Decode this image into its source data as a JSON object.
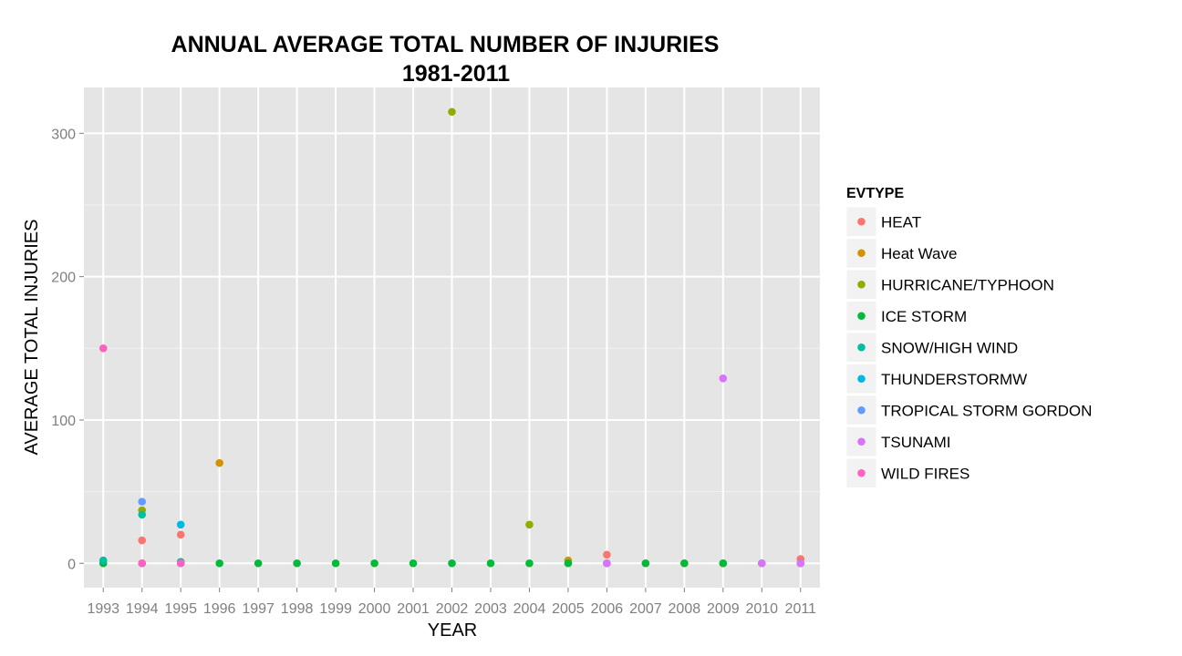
{
  "chart_data": {
    "type": "scatter",
    "title": "ANNUAL AVERAGE TOTAL NUMBER OF INJURIES",
    "subtitle": "1981-2011",
    "xlabel": "YEAR",
    "ylabel": "AVERAGE TOTAL INJURIES",
    "categories": [
      "1993",
      "1994",
      "1995",
      "1996",
      "1997",
      "1998",
      "1999",
      "2000",
      "2001",
      "2002",
      "2003",
      "2004",
      "2005",
      "2006",
      "2007",
      "2008",
      "2009",
      "2010",
      "2011"
    ],
    "ylim": [
      -17,
      332
    ],
    "yticks": [
      0,
      100,
      200,
      300
    ],
    "grid": true,
    "legend_title": "EVTYPE",
    "legend_position": "right",
    "series": [
      {
        "name": "HEAT",
        "color": "#F8766D",
        "points": [
          [
            "1994",
            16
          ],
          [
            "1995",
            20
          ],
          [
            "2006",
            6
          ],
          [
            "2007",
            0
          ],
          [
            "2008",
            0
          ],
          [
            "2011",
            3
          ]
        ]
      },
      {
        "name": "Heat Wave",
        "color": "#D39200",
        "points": [
          [
            "1996",
            70
          ],
          [
            "2005",
            2
          ]
        ]
      },
      {
        "name": "HURRICANE/TYPHOON",
        "color": "#93AA00",
        "points": [
          [
            "1994",
            37
          ],
          [
            "2002",
            315
          ],
          [
            "2004",
            27
          ],
          [
            "2009",
            0
          ]
        ]
      },
      {
        "name": "ICE STORM",
        "color": "#00BA38",
        "points": [
          [
            "1993",
            0
          ],
          [
            "1994",
            0
          ],
          [
            "1995",
            0
          ],
          [
            "1996",
            0
          ],
          [
            "1997",
            0
          ],
          [
            "1998",
            0
          ],
          [
            "1999",
            0
          ],
          [
            "2000",
            0
          ],
          [
            "2001",
            0
          ],
          [
            "2002",
            0
          ],
          [
            "2003",
            0
          ],
          [
            "2004",
            0
          ],
          [
            "2005",
            0
          ],
          [
            "2006",
            0
          ],
          [
            "2007",
            0
          ],
          [
            "2008",
            0
          ],
          [
            "2009",
            0
          ],
          [
            "2010",
            0
          ],
          [
            "2011",
            0
          ]
        ]
      },
      {
        "name": "SNOW/HIGH WIND",
        "color": "#00C19F",
        "points": [
          [
            "1993",
            2
          ],
          [
            "1994",
            34
          ],
          [
            "1995",
            1
          ]
        ]
      },
      {
        "name": "THUNDERSTORMW",
        "color": "#00B9E3",
        "points": [
          [
            "1995",
            27
          ]
        ]
      },
      {
        "name": "TROPICAL STORM GORDON",
        "color": "#619CFF",
        "points": [
          [
            "1994",
            43
          ]
        ]
      },
      {
        "name": "TSUNAMI",
        "color": "#DB72FB",
        "points": [
          [
            "2006",
            0
          ],
          [
            "2009",
            129
          ],
          [
            "2010",
            0
          ],
          [
            "2011",
            0
          ]
        ]
      },
      {
        "name": "WILD FIRES",
        "color": "#FF61C3",
        "points": [
          [
            "1993",
            150
          ],
          [
            "1994",
            0
          ],
          [
            "1995",
            0
          ]
        ]
      }
    ]
  }
}
